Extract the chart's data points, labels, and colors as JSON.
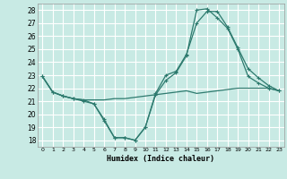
{
  "xlabel": "Humidex (Indice chaleur)",
  "bg_color": "#c8eae4",
  "grid_color": "#ffffff",
  "line_color": "#2d7a6e",
  "xlim": [
    -0.5,
    23.5
  ],
  "ylim": [
    17.5,
    28.5
  ],
  "yticks": [
    18,
    19,
    20,
    21,
    22,
    23,
    24,
    25,
    26,
    27,
    28
  ],
  "xticks": [
    0,
    1,
    2,
    3,
    4,
    5,
    6,
    7,
    8,
    9,
    10,
    11,
    12,
    13,
    14,
    15,
    16,
    17,
    18,
    19,
    20,
    21,
    22,
    23
  ],
  "curve1_x": [
    0,
    1,
    2,
    3,
    4,
    5,
    6,
    7,
    8,
    9,
    10,
    11,
    12,
    13,
    14,
    15,
    16,
    17,
    18,
    19,
    20,
    21,
    22,
    23
  ],
  "curve1_y": [
    22.9,
    21.7,
    21.4,
    21.2,
    21.1,
    20.8,
    19.6,
    18.2,
    18.2,
    18.0,
    19.0,
    21.6,
    23.0,
    23.3,
    24.6,
    27.0,
    27.9,
    27.9,
    26.7,
    25.1,
    23.5,
    22.8,
    22.2,
    21.8
  ],
  "curve2_x": [
    0,
    1,
    2,
    3,
    4,
    5,
    6,
    7,
    8,
    9,
    10,
    11,
    12,
    13,
    14,
    15,
    16,
    17,
    18,
    19,
    20,
    21,
    22,
    23
  ],
  "curve2_y": [
    22.9,
    21.7,
    21.4,
    21.2,
    21.0,
    20.8,
    19.5,
    18.2,
    18.2,
    18.0,
    19.0,
    21.5,
    22.6,
    23.2,
    24.5,
    28.0,
    28.1,
    27.4,
    26.6,
    25.0,
    22.9,
    22.4,
    22.0,
    21.8
  ],
  "curve3_x": [
    0,
    1,
    2,
    3,
    4,
    5,
    6,
    7,
    8,
    9,
    10,
    11,
    12,
    13,
    14,
    15,
    16,
    17,
    18,
    19,
    20,
    21,
    22,
    23
  ],
  "curve3_y": [
    22.9,
    21.7,
    21.4,
    21.2,
    21.1,
    21.1,
    21.1,
    21.2,
    21.2,
    21.3,
    21.4,
    21.5,
    21.6,
    21.7,
    21.8,
    21.6,
    21.7,
    21.8,
    21.9,
    22.0,
    22.0,
    22.0,
    22.0,
    21.8
  ]
}
